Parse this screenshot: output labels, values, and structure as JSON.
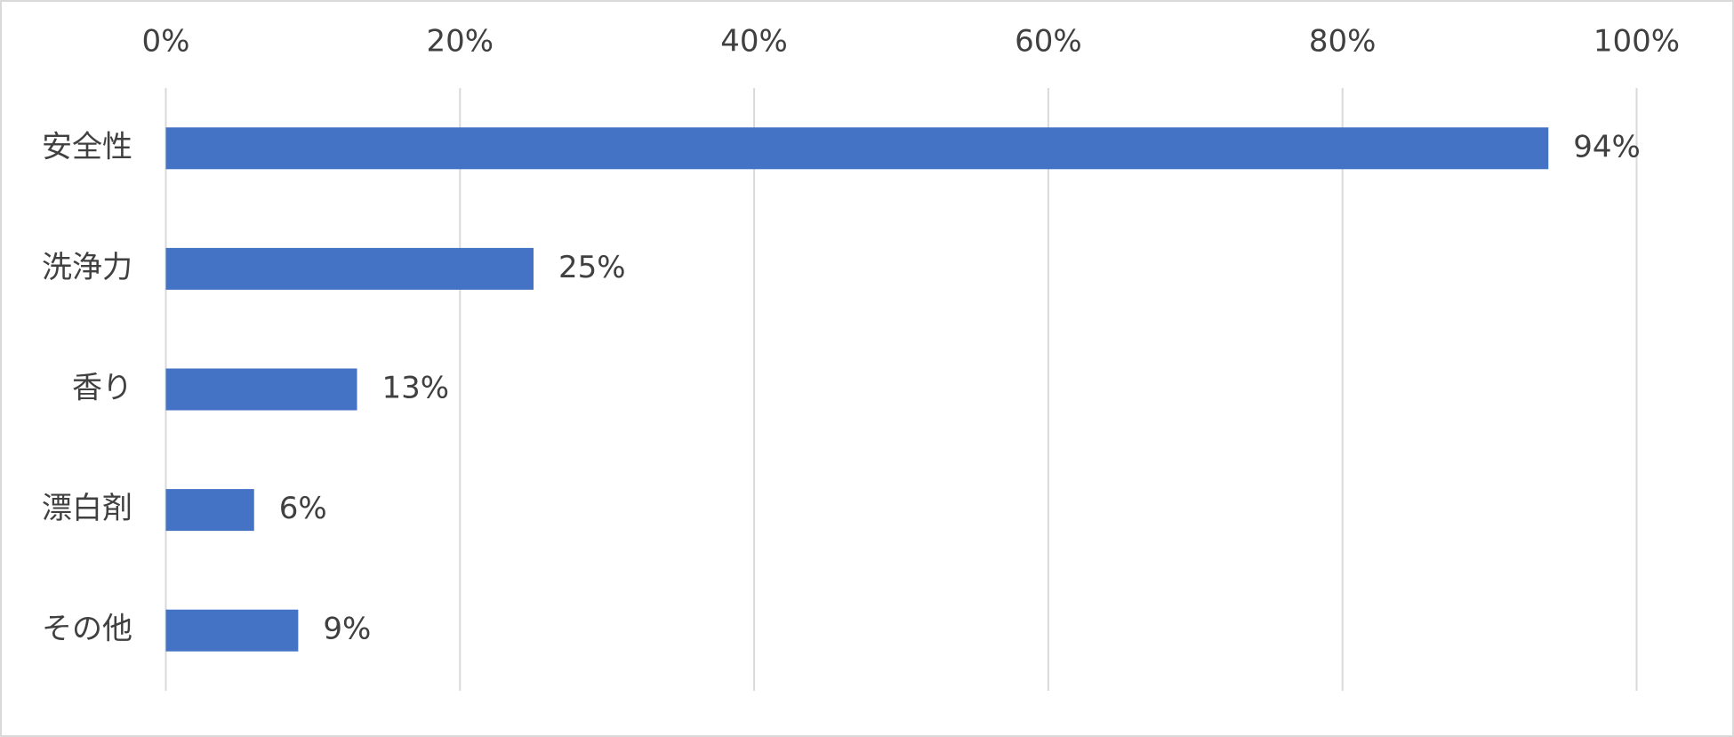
{
  "chart_data": {
    "type": "bar",
    "orientation": "horizontal",
    "categories": [
      "安全性",
      "洗浄力",
      "香り",
      "漂白剤",
      "その他"
    ],
    "values": [
      94,
      25,
      13,
      6,
      9
    ],
    "value_labels": [
      "94%",
      "25%",
      "13%",
      "6%",
      "9%"
    ],
    "color": "#4472c4",
    "xlim": [
      0,
      100
    ],
    "xticks": [
      {
        "value": 0,
        "label": "0%"
      },
      {
        "value": 20,
        "label": "20%"
      },
      {
        "value": 40,
        "label": "40%"
      },
      {
        "value": 60,
        "label": "60%"
      },
      {
        "value": 80,
        "label": "80%"
      },
      {
        "value": 100,
        "label": "100%"
      }
    ],
    "grid": true
  }
}
